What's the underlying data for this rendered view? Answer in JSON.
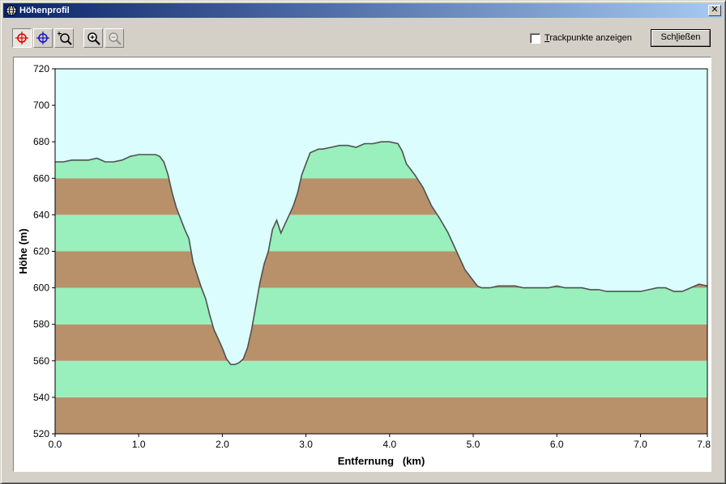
{
  "window": {
    "title": "Höhenprofil"
  },
  "toolbar": {
    "buttons": [
      {
        "name": "select-red-crosshair-button",
        "icon": "crosshair-red-icon"
      },
      {
        "name": "select-blue-crosshair-button",
        "icon": "crosshair-blue-icon"
      },
      {
        "name": "zoom-region-button",
        "icon": "zoom-region-icon"
      },
      {
        "name": "zoom-in-button",
        "icon": "zoom-in-icon"
      },
      {
        "name": "zoom-out-button",
        "icon": "zoom-out-icon"
      }
    ]
  },
  "options": {
    "trackpoints_label": "Trackpunkte anzeigen",
    "trackpoints_checked": false
  },
  "actions": {
    "close_label": "Schließen"
  },
  "colors": {
    "sky": "#dbfdfd",
    "band_green": "#99f0bd",
    "band_brown": "#b8916b",
    "profile_line": "#505050"
  },
  "chart_data": {
    "type": "area",
    "xlabel": "Entfernung   (km)",
    "ylabel": "Höhe (m)",
    "xlim": [
      0,
      7.8
    ],
    "ylim": [
      520,
      720
    ],
    "xticks": [
      "0.0",
      "1.0",
      "2.0",
      "3.0",
      "4.0",
      "5.0",
      "6.0",
      "7.0",
      "7.8"
    ],
    "xtick_values": [
      0,
      1,
      2,
      3,
      4,
      5,
      6,
      7,
      7.8
    ],
    "yticks": [
      520,
      540,
      560,
      580,
      600,
      620,
      640,
      660,
      680,
      700,
      720
    ],
    "bands_m": 20,
    "series": [
      {
        "x": [
          0,
          0.1,
          0.2,
          0.3,
          0.4,
          0.5,
          0.6,
          0.7,
          0.8,
          0.9,
          1.0,
          1.1,
          1.2,
          1.25,
          1.3,
          1.35,
          1.4,
          1.45,
          1.5,
          1.55,
          1.6,
          1.65,
          1.7,
          1.75,
          1.8,
          1.85,
          1.9,
          1.95,
          2.0,
          2.05,
          2.1,
          2.15,
          2.2,
          2.25,
          2.3,
          2.35,
          2.4,
          2.45,
          2.5,
          2.55,
          2.6,
          2.65,
          2.7,
          2.75,
          2.8,
          2.85,
          2.9,
          2.95,
          3.0,
          3.05,
          3.1,
          3.15,
          3.2,
          3.3,
          3.4,
          3.5,
          3.6,
          3.7,
          3.8,
          3.9,
          4.0,
          4.1,
          4.15,
          4.2,
          4.3,
          4.4,
          4.5,
          4.6,
          4.7,
          4.8,
          4.9,
          5.0,
          5.05,
          5.1,
          5.2,
          5.3,
          5.4,
          5.5,
          5.6,
          5.7,
          5.8,
          5.9,
          6.0,
          6.1,
          6.2,
          6.3,
          6.4,
          6.5,
          6.6,
          6.7,
          6.8,
          6.9,
          7.0,
          7.1,
          7.2,
          7.3,
          7.4,
          7.5,
          7.6,
          7.7,
          7.8
        ],
        "y": [
          669,
          669,
          670,
          670,
          670,
          671,
          669,
          669,
          670,
          672,
          673,
          673,
          673,
          672,
          669,
          662,
          652,
          644,
          638,
          632,
          627,
          614,
          607,
          600,
          594,
          585,
          577,
          572,
          567,
          561,
          558,
          558,
          559,
          561,
          567,
          577,
          590,
          603,
          613,
          620,
          632,
          637,
          630,
          635,
          640,
          645,
          652,
          662,
          668,
          674,
          675,
          676,
          676,
          677,
          678,
          678,
          677,
          679,
          679,
          680,
          680,
          679,
          675,
          668,
          662,
          655,
          645,
          638,
          630,
          620,
          610,
          604,
          601,
          600,
          600,
          601,
          601,
          601,
          600,
          600,
          600,
          600,
          601,
          600,
          600,
          600,
          599,
          599,
          598,
          598,
          598,
          598,
          598,
          599,
          600,
          600,
          598,
          598,
          600,
          602,
          601
        ]
      }
    ]
  }
}
